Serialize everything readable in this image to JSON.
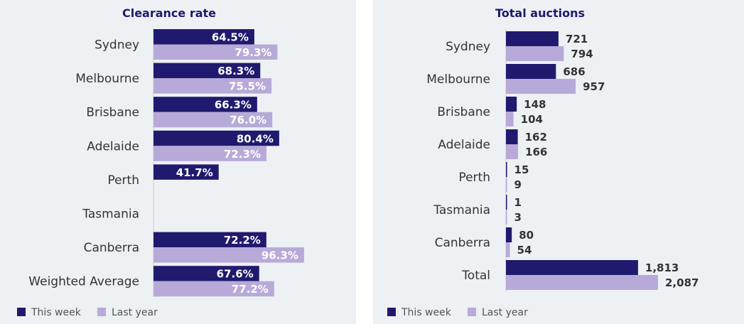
{
  "colors": {
    "this_week": "#1f1a6e",
    "last_year": "#b8aad8",
    "axis": "#cccccc",
    "background": "#edf1f4"
  },
  "legend": {
    "this_week": "This week",
    "last_year": "Last year"
  },
  "chart_data": [
    {
      "type": "bar",
      "orientation": "horizontal",
      "title": "Clearance rate",
      "categories": [
        "Sydney",
        "Melbourne",
        "Brisbane",
        "Adelaide",
        "Perth",
        "Tasmania",
        "Canberra",
        "Weighted Average"
      ],
      "series": [
        {
          "name": "This week",
          "values": [
            64.5,
            68.3,
            66.3,
            80.4,
            41.7,
            null,
            72.2,
            67.6
          ],
          "labels": [
            "64.5%",
            "68.3%",
            "66.3%",
            "80.4%",
            "41.7%",
            "",
            "72.2%",
            "67.6%"
          ]
        },
        {
          "name": "Last year",
          "values": [
            79.3,
            75.5,
            76.0,
            72.3,
            null,
            null,
            96.3,
            77.2
          ],
          "labels": [
            "79.3%",
            "75.5%",
            "76.0%",
            "72.3%",
            "",
            "",
            "96.3%",
            "77.2%"
          ]
        }
      ],
      "xlim": [
        0,
        100
      ],
      "legend": "bottom-left"
    },
    {
      "type": "bar",
      "orientation": "horizontal",
      "title": "Total auctions",
      "categories": [
        "Sydney",
        "Melbourne",
        "Brisbane",
        "Adelaide",
        "Perth",
        "Tasmania",
        "Canberra",
        "Total"
      ],
      "series": [
        {
          "name": "This week",
          "values": [
            721,
            686,
            148,
            162,
            15,
            1,
            80,
            1813
          ],
          "labels": [
            "721",
            "686",
            "148",
            "162",
            "15",
            "1",
            "80",
            "1,813"
          ]
        },
        {
          "name": "Last year",
          "values": [
            794,
            957,
            104,
            166,
            9,
            3,
            54,
            2087
          ],
          "labels": [
            "794",
            "957",
            "104",
            "166",
            "9",
            "3",
            "54",
            "2,087"
          ]
        }
      ],
      "xlim": [
        0,
        2087
      ],
      "legend": "bottom-left"
    }
  ]
}
